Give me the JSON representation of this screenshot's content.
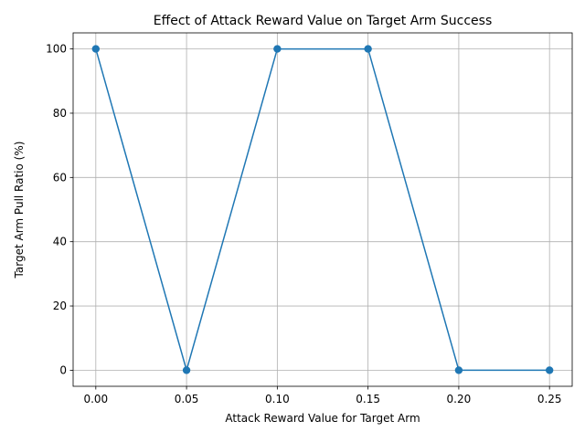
{
  "chart_data": {
    "type": "line",
    "title": "Effect of Attack Reward Value on Target Arm Success",
    "xlabel": "Attack Reward Value for Target Arm",
    "ylabel": "Target Arm Pull Ratio (%)",
    "x": [
      0.0,
      0.05,
      0.1,
      0.15,
      0.2,
      0.25
    ],
    "series": [
      {
        "values": [
          100,
          0,
          100,
          100,
          0,
          0
        ],
        "color": "#1f77b4",
        "marker": "circle"
      }
    ],
    "xlim": [
      -0.0125,
      0.2625
    ],
    "ylim": [
      -5,
      105
    ],
    "xticks": [
      0.0,
      0.05,
      0.1,
      0.15,
      0.2,
      0.25
    ],
    "xtick_labels": [
      "0.00",
      "0.05",
      "0.10",
      "0.15",
      "0.20",
      "0.25"
    ],
    "yticks": [
      0,
      20,
      40,
      60,
      80,
      100
    ],
    "ytick_labels": [
      "0",
      "20",
      "40",
      "60",
      "80",
      "100"
    ],
    "grid": true
  }
}
